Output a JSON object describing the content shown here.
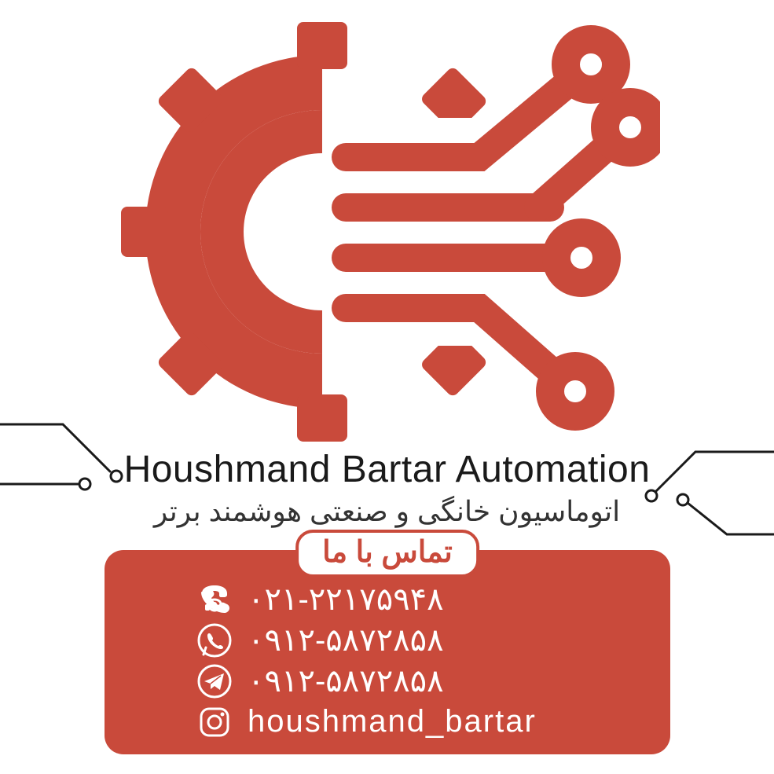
{
  "colors": {
    "accent": "#c94a3b",
    "text_dark": "#1a1a1a",
    "text_mid": "#333333",
    "white": "#ffffff",
    "trace": "#1a1a1a"
  },
  "logo": {
    "description": "gear-with-circuit-traces",
    "accent": "#c94a3b",
    "stroke_width": 36
  },
  "company": {
    "name_en": "Houshmand Bartar Automation",
    "name_fa": "اتوماسیون خانگی و صنعتی هوشمند برتر",
    "name_en_fontsize": 48,
    "name_fa_fontsize": 36
  },
  "traces": {
    "color": "#1a1a1a",
    "stroke_width": 3
  },
  "contact": {
    "header": "تماس با ما",
    "header_fontsize": 38,
    "card_bg": "#c94a3b",
    "card_radius": 24,
    "text_color": "#ffffff",
    "row_fontsize": 40,
    "items": [
      {
        "icon": "phone",
        "value": "۰۲۱-۲۲۱۷۵۹۴۸"
      },
      {
        "icon": "whatsapp",
        "value": "۰۹۱۲-۵۸۷۲۸۵۸"
      },
      {
        "icon": "telegram",
        "value": "۰۹۱۲-۵۸۷۲۸۵۸"
      },
      {
        "icon": "instagram",
        "value": "houshmand_bartar"
      }
    ]
  }
}
